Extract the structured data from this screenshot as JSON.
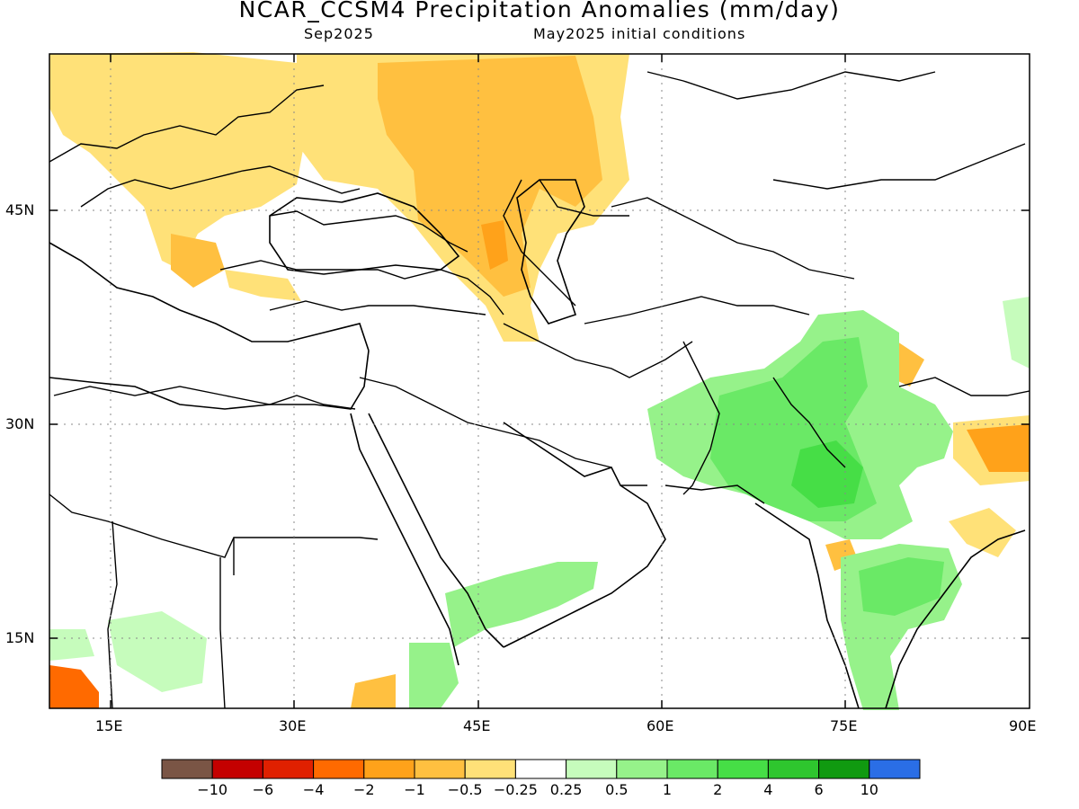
{
  "title": "NCAR_CCSM4 Precipitation Anomalies (mm/day)",
  "subtitle_left": "Sep2025",
  "subtitle_right": "May2025 initial conditions",
  "map": {
    "lon_range": [
      10,
      90
    ],
    "lat_range": [
      10,
      56
    ],
    "lat_ticks": [
      "45N",
      "30N",
      "15N"
    ],
    "lon_ticks": [
      "15E",
      "30E",
      "45E",
      "60E",
      "75E",
      "90E"
    ]
  },
  "legend": {
    "colors": [
      "#7a5545",
      "#c40000",
      "#e02000",
      "#ff6a00",
      "#ffa21a",
      "#ffc040",
      "#ffe178",
      "#ffffff",
      "#c6fcbc",
      "#96f28a",
      "#6ae966",
      "#46de46",
      "#2ec62e",
      "#109a10",
      "#2a6ee6"
    ],
    "labels": [
      "−10",
      "−6",
      "−4",
      "−2",
      "−1",
      "−0.5",
      "−0.25",
      "0.25",
      "0.5",
      "1",
      "2",
      "4",
      "6",
      "10"
    ]
  }
}
